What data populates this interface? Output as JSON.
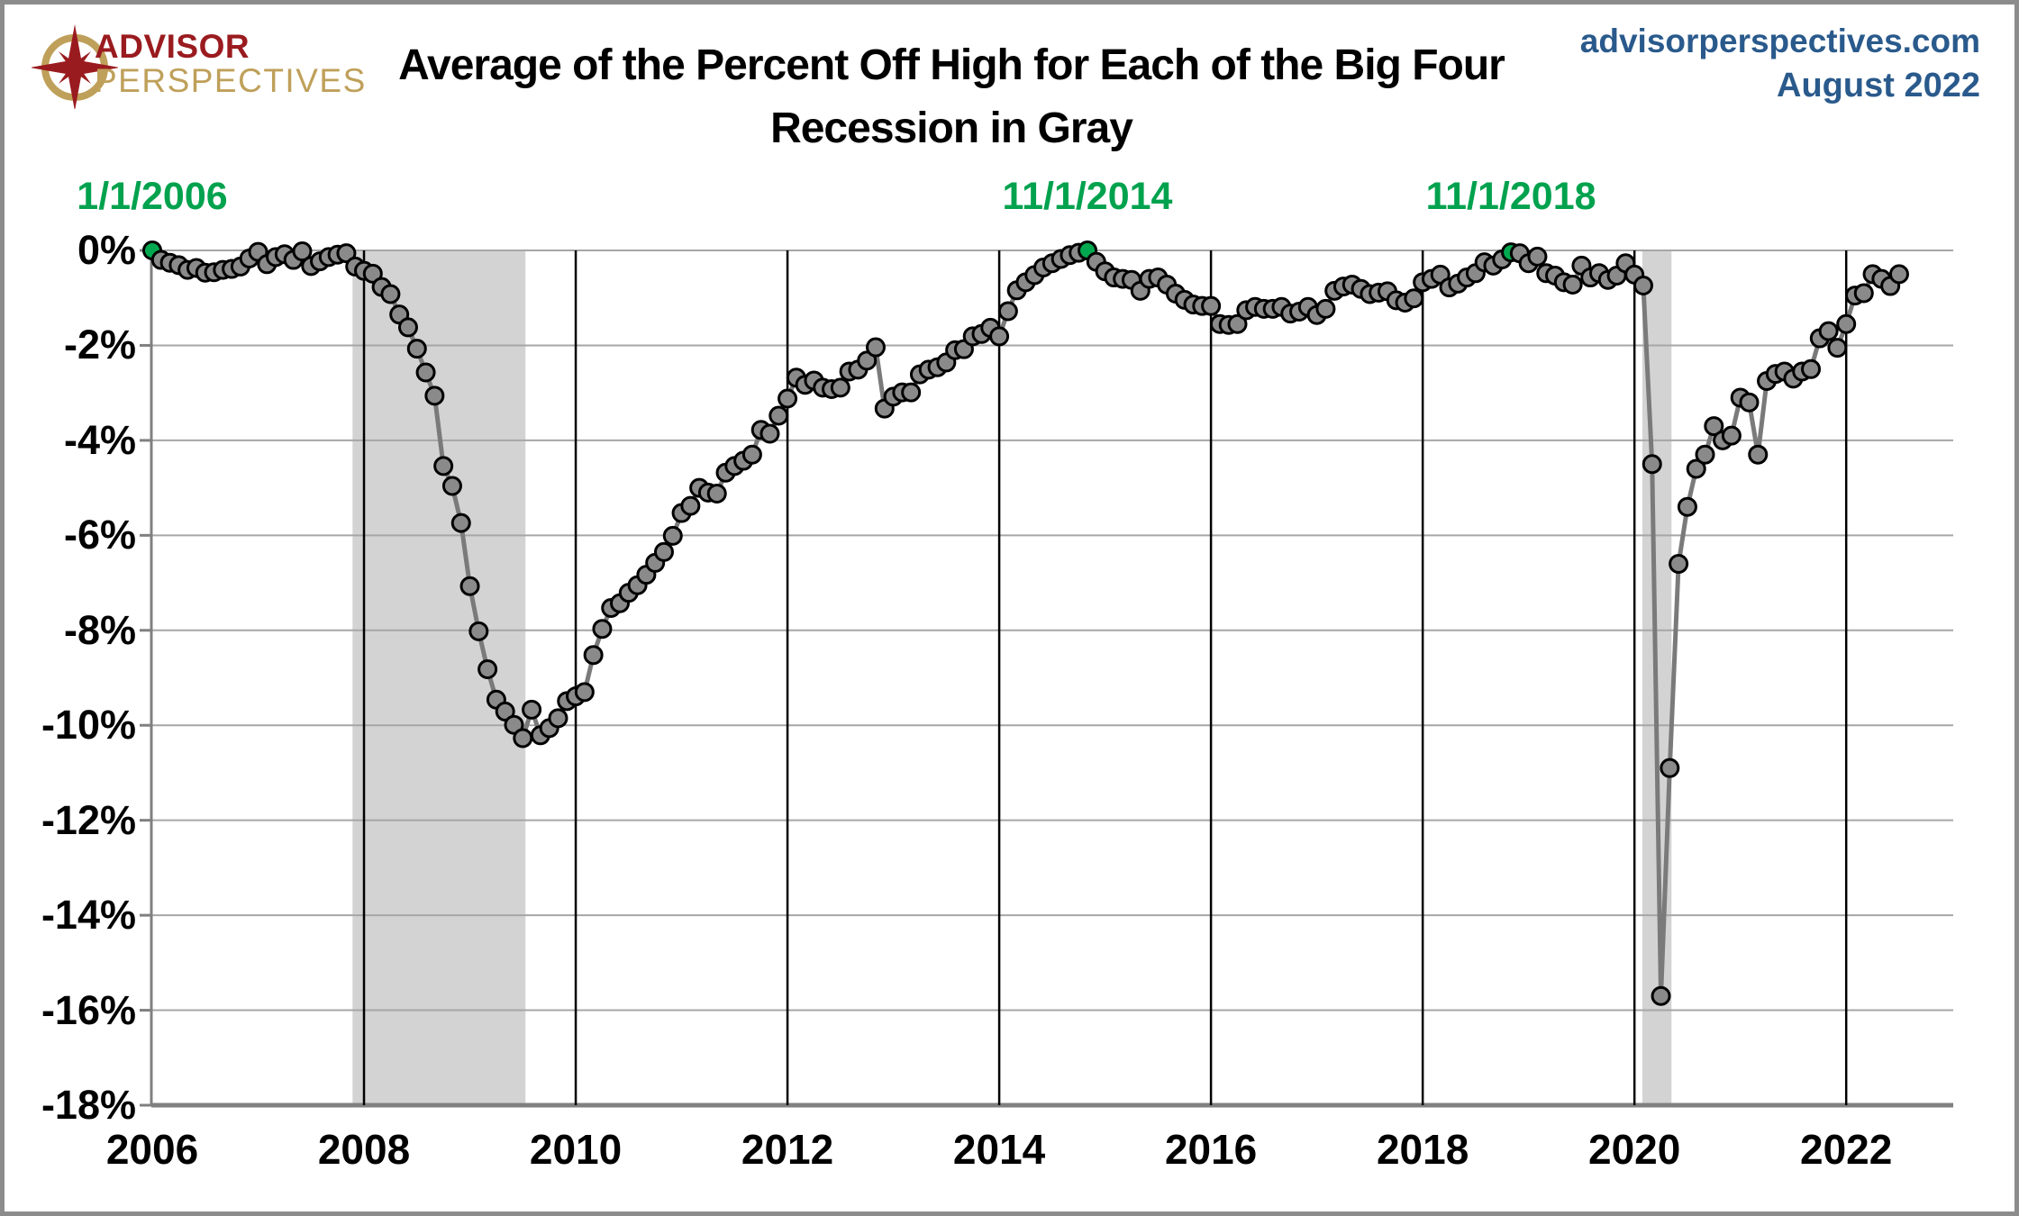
{
  "logo": {
    "line1": "ADVISOR",
    "line2": "PERSPECTIVES"
  },
  "title": {
    "line1": "Average of the Percent Off High for Each of the Big Four",
    "line2": "Recession in Gray"
  },
  "source": {
    "site": "advisorperspectives.com",
    "date": "August 2022"
  },
  "chart_data": {
    "type": "line",
    "title": "Average of the Percent Off High for Each of the Big Four",
    "subtitle": "Recession in Gray",
    "x_unit": "month",
    "x_start": "2006-01",
    "x_end": "2022-07",
    "x_tick_labels": [
      "2006",
      "2008",
      "2010",
      "2012",
      "2014",
      "2016",
      "2018",
      "2020",
      "2022"
    ],
    "y_tick_labels": [
      "0%",
      "-2%",
      "-4%",
      "-6%",
      "-8%",
      "-10%",
      "-12%",
      "-14%",
      "-16%",
      "-18%"
    ],
    "ylim": [
      -18,
      0
    ],
    "grid": true,
    "series": [
      {
        "name": "Average percent off high (Big Four)",
        "values": [
          0.0,
          -0.2,
          -0.26,
          -0.31,
          -0.41,
          -0.37,
          -0.47,
          -0.46,
          -0.41,
          -0.39,
          -0.34,
          -0.17,
          -0.03,
          -0.29,
          -0.14,
          -0.08,
          -0.2,
          -0.02,
          -0.33,
          -0.23,
          -0.14,
          -0.09,
          -0.06,
          -0.34,
          -0.43,
          -0.49,
          -0.77,
          -0.92,
          -1.35,
          -1.62,
          -2.07,
          -2.57,
          -3.06,
          -4.54,
          -4.96,
          -5.74,
          -7.07,
          -8.02,
          -8.82,
          -9.46,
          -9.71,
          -9.99,
          -10.27,
          -9.67,
          -10.21,
          -10.06,
          -9.85,
          -9.49,
          -9.39,
          -9.3,
          -8.52,
          -7.97,
          -7.53,
          -7.43,
          -7.21,
          -7.05,
          -6.83,
          -6.58,
          -6.35,
          -6.01,
          -5.53,
          -5.38,
          -5.0,
          -5.1,
          -5.12,
          -4.68,
          -4.54,
          -4.43,
          -4.3,
          -3.78,
          -3.86,
          -3.48,
          -3.12,
          -2.68,
          -2.83,
          -2.74,
          -2.89,
          -2.92,
          -2.89,
          -2.55,
          -2.51,
          -2.32,
          -2.04,
          -3.33,
          -3.08,
          -2.99,
          -2.99,
          -2.61,
          -2.51,
          -2.46,
          -2.36,
          -2.1,
          -2.08,
          -1.81,
          -1.76,
          -1.63,
          -1.81,
          -1.28,
          -0.84,
          -0.67,
          -0.52,
          -0.36,
          -0.27,
          -0.18,
          -0.1,
          -0.05,
          0.0,
          -0.24,
          -0.44,
          -0.57,
          -0.6,
          -0.62,
          -0.85,
          -0.6,
          -0.57,
          -0.72,
          -0.91,
          -1.04,
          -1.14,
          -1.17,
          -1.17,
          -1.55,
          -1.57,
          -1.55,
          -1.26,
          -1.19,
          -1.23,
          -1.23,
          -1.19,
          -1.33,
          -1.29,
          -1.19,
          -1.36,
          -1.23,
          -0.85,
          -0.76,
          -0.72,
          -0.81,
          -0.92,
          -0.89,
          -0.86,
          -1.05,
          -1.1,
          -1.01,
          -0.67,
          -0.6,
          -0.51,
          -0.78,
          -0.7,
          -0.57,
          -0.48,
          -0.25,
          -0.32,
          -0.19,
          -0.04,
          -0.06,
          -0.27,
          -0.13,
          -0.48,
          -0.53,
          -0.67,
          -0.72,
          -0.32,
          -0.57,
          -0.48,
          -0.62,
          -0.53,
          -0.27,
          -0.51,
          -0.74,
          -4.5,
          -15.7,
          -10.9,
          -6.6,
          -5.4,
          -4.6,
          -4.3,
          -3.7,
          -4.0,
          -3.9,
          -3.1,
          -3.2,
          -4.3,
          -2.75,
          -2.6,
          -2.55,
          -2.7,
          -2.55,
          -2.5,
          -1.85,
          -1.7,
          -2.05,
          -1.55,
          -0.95,
          -0.9,
          -0.5,
          -0.6,
          -0.75,
          -0.5
        ]
      }
    ],
    "highlight_points": [
      {
        "label": "1/1/2006",
        "index": 0
      },
      {
        "label": "11/1/2014",
        "index": 106
      },
      {
        "label": "11/1/2018",
        "index": 154
      }
    ],
    "recession_bands": [
      {
        "label": "Dec 2007 - Jun 2009",
        "start_index": 22.7,
        "end_index": 42.3
      },
      {
        "label": "Feb 2020 - Apr 2020",
        "start_index": 168.9,
        "end_index": 172.2
      }
    ],
    "colors": {
      "line": "#7a7a7a",
      "marker": "#8a8a8a",
      "marker_outline": "#000000",
      "highlight_marker": "#00a94f",
      "highlight_text": "#00a24e",
      "recession_band": "#d3d3d3",
      "grid_horizontal": "#a6a6a6",
      "grid_vertical": "#000000",
      "axis": "#808080",
      "title_text": "#000000",
      "source_text": "#2a5a8c",
      "logo_red": "#9a1b1f",
      "logo_gold": "#bfa05a"
    },
    "legend": "none"
  }
}
